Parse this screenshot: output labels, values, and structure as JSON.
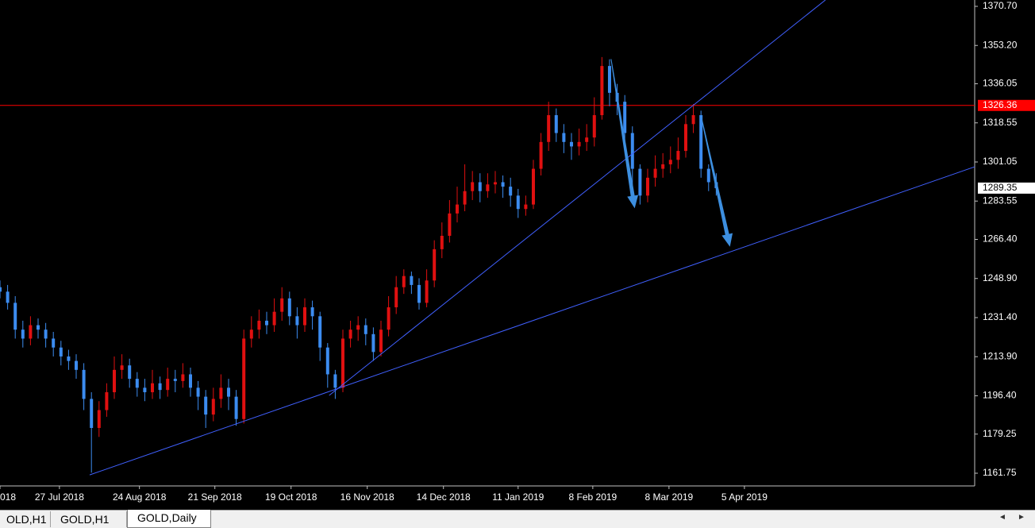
{
  "chart_data": {
    "type": "candlestick",
    "xlim": [
      0,
      127.92
    ],
    "ylim": [
      1156.06,
      1373.54
    ],
    "yticks": [
      {
        "value": 1370.7,
        "label": "1370.70"
      },
      {
        "value": 1353.2,
        "label": "1353.20"
      },
      1336.05,
      1318.55,
      1301.05,
      1283.55,
      {
        "value": 1266.4,
        "label": "1266.40"
      },
      {
        "value": 1248.9,
        "label": "1248.90"
      },
      {
        "value": 1231.4,
        "label": "1231.40"
      },
      {
        "value": 1213.9,
        "label": "1213.90"
      },
      {
        "value": 1196.4,
        "label": "1196.40"
      },
      1179.25,
      1161.75
    ],
    "xticks": [
      {
        "value": 0,
        "label": "018"
      },
      {
        "value": 7.8,
        "label": "27 Jul 2018"
      },
      {
        "value": 18.3,
        "label": "24 Aug 2018"
      },
      {
        "value": 28.2,
        "label": "21 Sep 2018"
      },
      {
        "value": 38.2,
        "label": "19 Oct 2018"
      },
      {
        "value": 48.2,
        "label": "16 Nov 2018"
      },
      {
        "value": 58.2,
        "label": "14 Dec 2018"
      },
      {
        "value": 68,
        "label": "11 Jan 2019"
      },
      {
        "value": 77.8,
        "label": "8 Feb 2019"
      },
      {
        "value": 87.8,
        "label": "8 Mar 2019"
      },
      {
        "value": 97.7,
        "label": "5 Apr 2019"
      }
    ],
    "up_color": "#e01010",
    "down_color": "#3c8cf0",
    "open": [
      1245,
      1243,
      1238,
      1226,
      1222,
      1228,
      1226,
      1222,
      1218,
      1214,
      1212,
      1208,
      1195,
      1182,
      1190,
      1198,
      1208,
      1210,
      1204,
      1200,
      1198,
      1202,
      1199,
      1204,
      1203,
      1206,
      1200,
      1196,
      1188,
      1195,
      1200,
      1196,
      1186,
      1222,
      1226,
      1230,
      1228,
      1234,
      1240,
      1232,
      1228,
      1236,
      1232,
      1218,
      1206,
      1200,
      1222,
      1226,
      1228,
      1224,
      1216,
      1226,
      1236,
      1245,
      1250,
      1246,
      1238,
      1248,
      1262,
      1268,
      1278,
      1282,
      1288,
      1292,
      1288,
      1291,
      1292,
      1290,
      1286,
      1280,
      1282,
      1298,
      1310,
      1322,
      1314,
      1310,
      1308,
      1310,
      1312,
      1322,
      1344,
      1332,
      1328,
      1314,
      1298,
      1286,
      1294,
      1298,
      1300,
      1302,
      1306,
      1318,
      1322,
      1298,
      1292
    ],
    "high": [
      1248,
      1246,
      1241,
      1230,
      1232,
      1231,
      1229,
      1225,
      1221,
      1217,
      1215,
      1211,
      1198,
      1194,
      1202,
      1214,
      1215,
      1213,
      1207,
      1204,
      1208,
      1205,
      1209,
      1208,
      1211,
      1209,
      1203,
      1199,
      1200,
      1206,
      1204,
      1199,
      1226,
      1232,
      1235,
      1234,
      1240,
      1245,
      1243,
      1236,
      1240,
      1239,
      1234,
      1220,
      1208,
      1226,
      1230,
      1232,
      1231,
      1227,
      1230,
      1241,
      1250,
      1253,
      1252,
      1249,
      1253,
      1266,
      1274,
      1284,
      1290,
      1300,
      1297,
      1296,
      1296,
      1297,
      1295,
      1294,
      1289,
      1286,
      1302,
      1314,
      1328,
      1325,
      1318,
      1314,
      1316,
      1318,
      1330,
      1348,
      1347,
      1336,
      1331,
      1317,
      1300,
      1298,
      1304,
      1305,
      1308,
      1312,
      1322,
      1327,
      1324,
      1300,
      1296
    ],
    "low": [
      1240,
      1235,
      1222,
      1218,
      1219,
      1222,
      1218,
      1214,
      1210,
      1208,
      1204,
      1190,
      1162,
      1178,
      1187,
      1195,
      1204,
      1200,
      1196,
      1194,
      1195,
      1195,
      1196,
      1198,
      1200,
      1196,
      1190,
      1182,
      1185,
      1191,
      1190,
      1183,
      1184,
      1218,
      1222,
      1224,
      1225,
      1230,
      1228,
      1222,
      1225,
      1226,
      1212,
      1200,
      1195,
      1198,
      1218,
      1221,
      1219,
      1212,
      1214,
      1223,
      1233,
      1242,
      1242,
      1235,
      1236,
      1245,
      1258,
      1265,
      1274,
      1279,
      1284,
      1283,
      1285,
      1287,
      1285,
      1281,
      1276,
      1277,
      1280,
      1295,
      1306,
      1310,
      1305,
      1302,
      1304,
      1306,
      1308,
      1320,
      1326,
      1322,
      1308,
      1290,
      1282,
      1283,
      1290,
      1294,
      1296,
      1298,
      1303,
      1314,
      1294,
      1288,
      1286
    ],
    "close": [
      1243,
      1238,
      1226,
      1222,
      1228,
      1226,
      1222,
      1218,
      1214,
      1212,
      1208,
      1195,
      1182,
      1190,
      1198,
      1208,
      1210,
      1204,
      1200,
      1198,
      1202,
      1199,
      1204,
      1203,
      1206,
      1200,
      1196,
      1188,
      1195,
      1200,
      1196,
      1186,
      1222,
      1226,
      1230,
      1228,
      1234,
      1240,
      1232,
      1228,
      1236,
      1232,
      1218,
      1206,
      1200,
      1222,
      1226,
      1228,
      1224,
      1216,
      1226,
      1236,
      1245,
      1250,
      1246,
      1238,
      1248,
      1262,
      1268,
      1278,
      1282,
      1288,
      1292,
      1288,
      1291,
      1292,
      1290,
      1286,
      1280,
      1282,
      1298,
      1310,
      1322,
      1314,
      1310,
      1308,
      1310,
      1312,
      1322,
      1344,
      1332,
      1328,
      1314,
      1298,
      1286,
      1294,
      1298,
      1300,
      1302,
      1306,
      1318,
      1322,
      1298,
      1292,
      1289.35
    ],
    "trendlines": [
      {
        "color": "#4060ff",
        "x": [
          11.77,
          127.92
        ],
        "y": [
          1161.0,
          1298.9
        ]
      },
      {
        "color": "#4060ff",
        "x": [
          43.2,
          108.33
        ],
        "y": [
          1196.57,
          1373.54
        ]
      }
    ],
    "arrows": [
      {
        "color": "#3d8fe0",
        "x": [
          80.2,
          83.3
        ],
        "y": [
          1347.1,
          1280.3
        ]
      },
      {
        "color": "#3d8fe0",
        "x": [
          92,
          95.8
        ],
        "y": [
          1321.8,
          1263.1
        ]
      }
    ],
    "price_line": {
      "value": 1326.36,
      "color": "#ff0000"
    },
    "last_price": 1289.35
  },
  "tabs": [
    "OLD,H1",
    "GOLD,H1",
    "GOLD,Daily"
  ]
}
